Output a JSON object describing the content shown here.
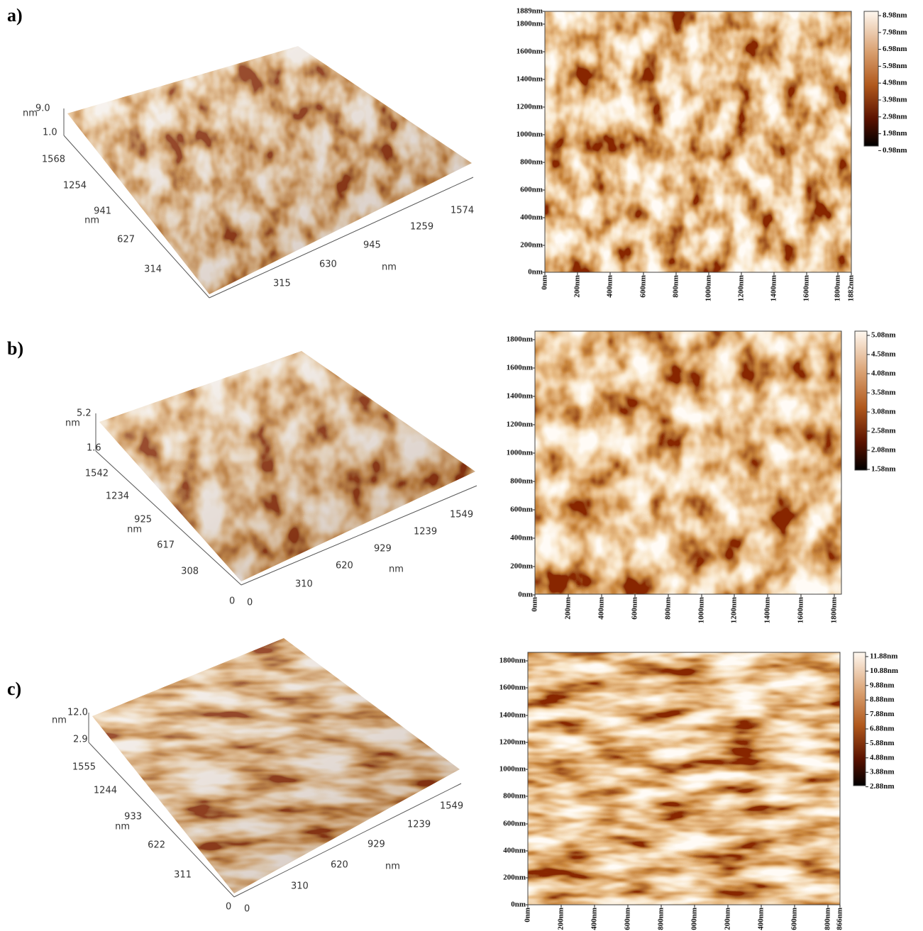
{
  "panels": [
    {
      "label": "a)",
      "view3d": {
        "z_max": "9.0",
        "z_unit": "nm",
        "z_min": "1.0",
        "y_ticks": [
          "1568",
          "1254",
          "941",
          "627",
          "314"
        ],
        "y_unit": "nm",
        "x_ticks": [
          "315",
          "630",
          "945",
          "1259",
          "1574"
        ],
        "x_unit": "nm"
      },
      "map": {
        "y_ticks": [
          "1889nm",
          "1800nm",
          "1600nm",
          "1400nm",
          "1200nm",
          "1000nm",
          "800nm",
          "600nm",
          "400nm",
          "200nm",
          "0nm"
        ],
        "x_ticks": [
          "0nm",
          "200nm",
          "400nm",
          "600nm",
          "800nm",
          "1000nm",
          "1200nm",
          "1400nm",
          "1600nm",
          "1800nm",
          "1882nm"
        ],
        "colorbar": [
          "8.98nm",
          "7.98nm",
          "6.98nm",
          "5.98nm",
          "4.98nm",
          "3.98nm",
          "2.98nm",
          "1.98nm",
          "0.98nm"
        ]
      }
    },
    {
      "label": "b)",
      "view3d": {
        "z_max": "5.2",
        "z_unit": "nm",
        "z_min": "1.6",
        "y_ticks": [
          "1542",
          "1234",
          "925",
          "617",
          "308"
        ],
        "y_unit": "nm",
        "y_origin": "0",
        "x_origin": "0",
        "x_ticks": [
          "310",
          "620",
          "929",
          "1239",
          "1549"
        ],
        "x_unit": "nm"
      },
      "map": {
        "y_ticks": [
          "1800nm",
          "1600nm",
          "1400nm",
          "1200nm",
          "1000nm",
          "800nm",
          "600nm",
          "400nm",
          "200nm",
          "0nm"
        ],
        "x_ticks": [
          "0nm",
          "200nm",
          "400nm",
          "600nm",
          "800nm",
          "1000nm",
          "1200nm",
          "1400nm",
          "1600nm",
          "1800nm"
        ],
        "colorbar": [
          "5.08nm",
          "4.58nm",
          "4.08nm",
          "3.58nm",
          "3.08nm",
          "2.58nm",
          "2.08nm",
          "1.58nm"
        ]
      }
    },
    {
      "label": "c)",
      "view3d": {
        "z_max": "12.0",
        "z_unit": "nm",
        "z_min": "2.9",
        "y_ticks": [
          "1555",
          "1244",
          "933",
          "622",
          "311"
        ],
        "y_unit": "nm",
        "y_origin": "0",
        "x_origin": "0",
        "x_ticks": [
          "310",
          "620",
          "929",
          "1239",
          "1549"
        ],
        "x_unit": "nm"
      },
      "map": {
        "y_ticks": [
          "1800nm",
          "1600nm",
          "1400nm",
          "1200nm",
          "1000nm",
          "800nm",
          "600nm",
          "400nm",
          "200nm",
          "0nm"
        ],
        "x_ticks": [
          "0nm",
          "200nm",
          "400nm",
          "600nm",
          "800nm",
          "000nm",
          "200nm",
          "400nm",
          "600nm",
          "800nm",
          "866nm"
        ],
        "colorbar": [
          "11.88nm",
          "10.88nm",
          "9.88nm",
          "8.88nm",
          "7.88nm",
          "6.88nm",
          "5.88nm",
          "4.88nm",
          "3.88nm",
          "2.88nm"
        ]
      }
    }
  ]
}
